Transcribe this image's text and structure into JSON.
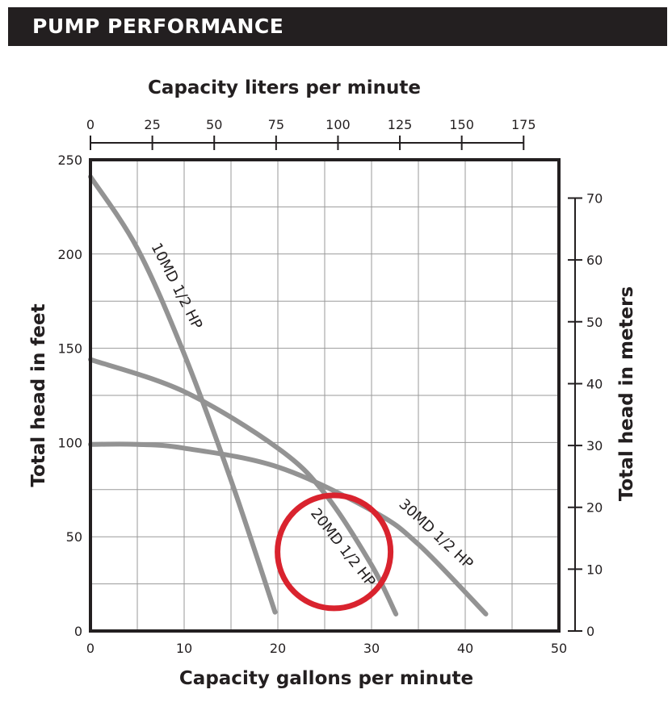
{
  "header": {
    "title": "PUMP PERFORMANCE"
  },
  "chart_data": {
    "type": "line",
    "title": "",
    "xlabel": "Capacity gallons per minute",
    "ylabel": "Total head in feet",
    "x2label": "Capacity liters per minute",
    "y2label": "Total head in meters",
    "xlim": [
      0,
      50
    ],
    "ylim": [
      0,
      250
    ],
    "x2lim": [
      0,
      189.27
    ],
    "y2lim": [
      0,
      76.2
    ],
    "xticks": [
      "0",
      "10",
      "20",
      "30",
      "40",
      "50"
    ],
    "yticks": [
      "0",
      "50",
      "100",
      "150",
      "200",
      "250"
    ],
    "x2ticks": [
      "0",
      "25",
      "50",
      "75",
      "100",
      "125",
      "150",
      "175"
    ],
    "y2ticks": [
      "0",
      "10",
      "20",
      "30",
      "40",
      "50",
      "60",
      "70"
    ],
    "grid": true,
    "series": [
      {
        "name": "10MD 1/2 HP",
        "x": [
          0,
          5,
          10,
          15,
          19.7
        ],
        "y": [
          241,
          203,
          147,
          80,
          10
        ]
      },
      {
        "name": "20MD 1/2 HP",
        "x": [
          0,
          10,
          20,
          25,
          30,
          32.6
        ],
        "y": [
          144,
          127,
          97,
          73,
          35,
          9
        ]
      },
      {
        "name": "30MD 1/2 HP",
        "x": [
          0,
          5,
          10,
          20,
          30,
          35,
          42.2
        ],
        "y": [
          99,
          99,
          97,
          87,
          64,
          46,
          9
        ]
      }
    ],
    "highlight_circle": {
      "cx": 26,
      "cy": 42,
      "color": "#d9232e"
    }
  }
}
